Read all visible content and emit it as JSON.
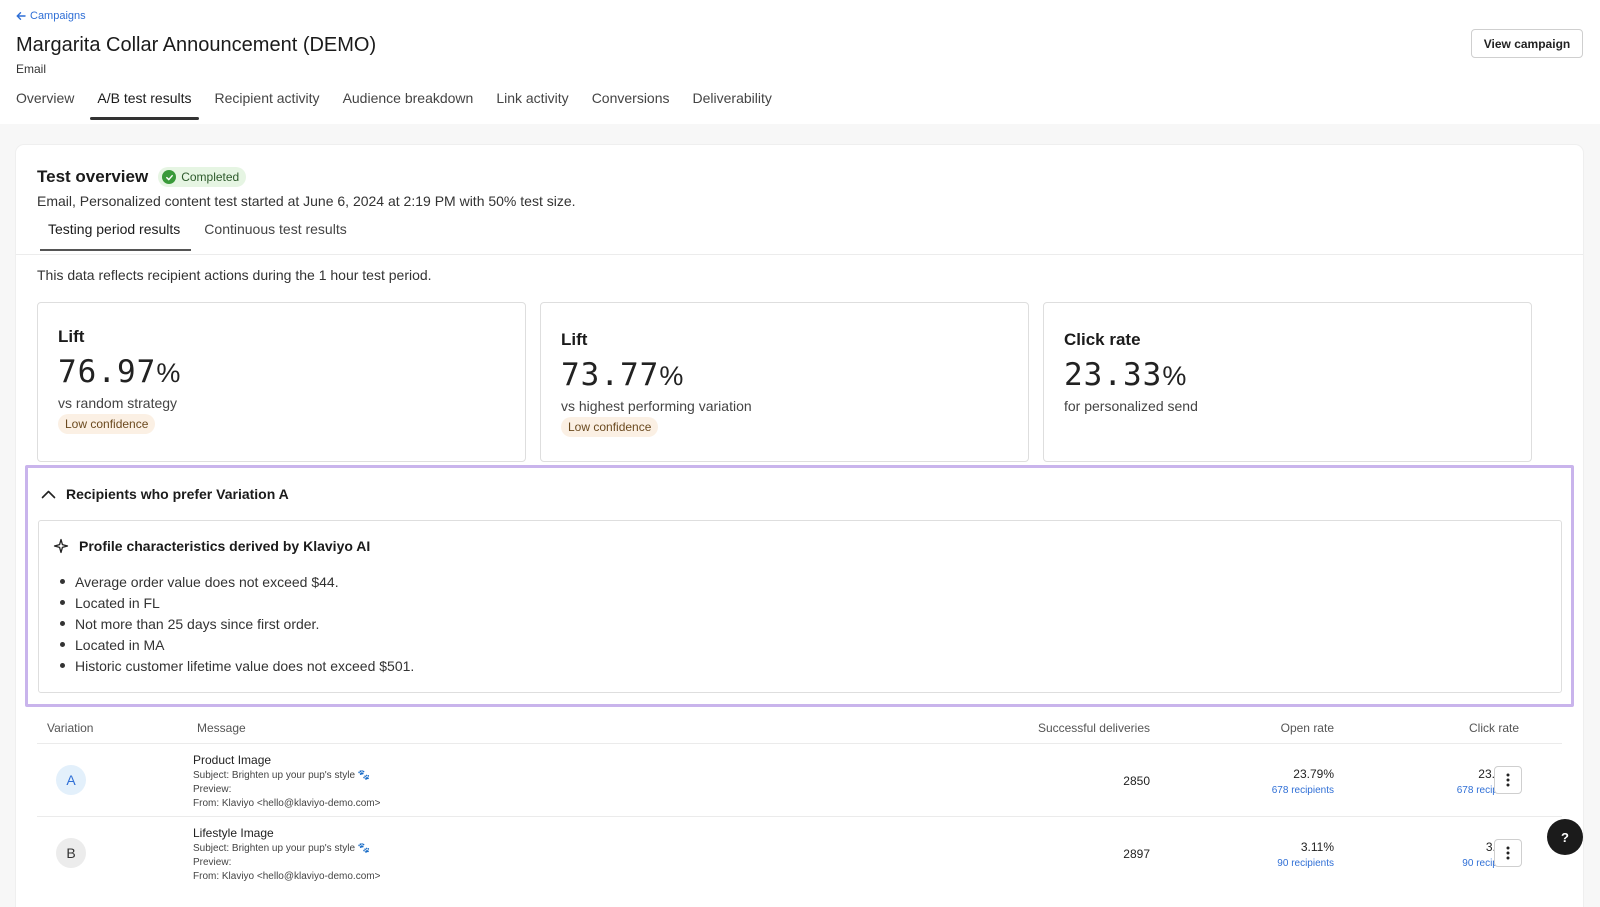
{
  "header": {
    "back_label": "Campaigns",
    "title": "Margarita Collar Announcement (DEMO)",
    "channel": "Email",
    "view_campaign": "View campaign"
  },
  "tabs": [
    "Overview",
    "A/B test results",
    "Recipient activity",
    "Audience breakdown",
    "Link activity",
    "Conversions",
    "Deliverability"
  ],
  "active_tab": "A/B test results",
  "test_overview": {
    "title": "Test overview",
    "status": "Completed",
    "description": "Email, Personalized content test started at June 6, 2024 at 2:19 PM with 50% test size.",
    "subtabs": [
      "Testing period results",
      "Continuous test results"
    ],
    "period_note": "This data reflects recipient actions during the 1 hour test period."
  },
  "stats": [
    {
      "label": "Lift",
      "value": "76.97",
      "unit": "%",
      "sub": "vs random strategy",
      "confidence": "Low confidence"
    },
    {
      "label": "Lift",
      "value": "73.77",
      "unit": "%",
      "sub": "vs highest performing variation",
      "confidence": "Low confidence"
    },
    {
      "label": "Click rate",
      "value": "23.33",
      "unit": "%",
      "sub": "for personalized send",
      "confidence": ""
    }
  ],
  "preference": {
    "title": "Recipients who prefer Variation A",
    "ai_title": "Profile characteristics derived by Klaviyo AI",
    "bullets": [
      "Average order value does not exceed $44.",
      "Located in FL",
      "Not more than 25 days since first order.",
      "Located in MA",
      "Historic customer lifetime value does not exceed $501."
    ]
  },
  "table": {
    "columns": [
      "Variation",
      "Message",
      "Successful deliveries",
      "Open rate",
      "Click rate"
    ],
    "rows": [
      {
        "variation": "A",
        "message_name": "Product Image",
        "subject": "Subject: Brighten up your pup's style 🐾",
        "preview": "Preview:",
        "from": "From: Klaviyo <hello@klaviyo-demo.com>",
        "deliveries": "2850",
        "open_rate": "23.79%",
        "open_recipients": "678 recipients",
        "click_rate": "23.79%",
        "click_recipients": "678 recipients"
      },
      {
        "variation": "B",
        "message_name": "Lifestyle Image",
        "subject": "Subject: Brighten up your pup's style 🐾",
        "preview": "Preview:",
        "from": "From: Klaviyo <hello@klaviyo-demo.com>",
        "deliveries": "2897",
        "open_rate": "3.11%",
        "open_recipients": "90 recipients",
        "click_rate": "3.11%",
        "click_recipients": "90 recipients"
      }
    ]
  },
  "help_label": "?",
  "colors": {
    "link": "#2f6fd6",
    "completed_badge_bg": "#e6f5e3",
    "low_confidence_bg": "#fbf0e4",
    "highlight_border": "#c9b4ec",
    "variation_a_bg": "#e3f0fb",
    "variation_b_bg": "#ececec"
  },
  "icons": [
    "arrow-left-icon",
    "check-circle-icon",
    "chevron-up-icon",
    "sparkle-icon",
    "kebab-icon"
  ]
}
